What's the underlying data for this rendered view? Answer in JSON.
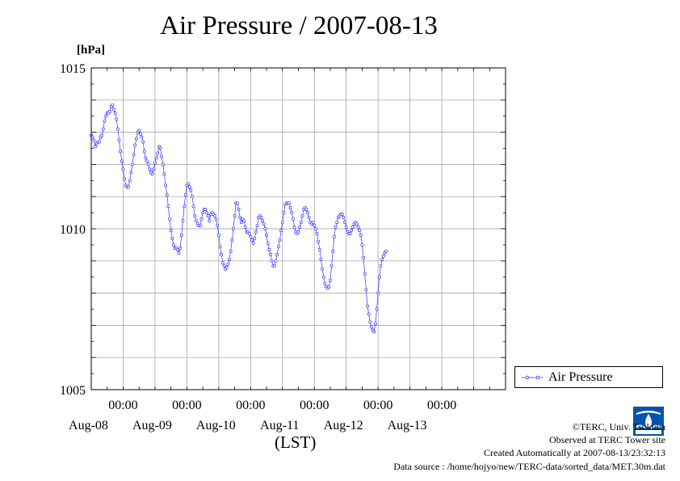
{
  "chart_data": {
    "type": "line",
    "title": "Air Pressure / 2007-08-13",
    "ylabel": "[hPa]",
    "xlabel": "(LST)",
    "ylim": [
      1005,
      1015
    ],
    "y_ticks": [
      "1005",
      "1010",
      "1015"
    ],
    "x_range": [
      "2007-08-07T12:00",
      "2007-08-13T24:00"
    ],
    "x_ticks": [
      {
        "time": "00:00",
        "date": "Aug-08"
      },
      {
        "time": "00:00",
        "date": "Aug-09"
      },
      {
        "time": "00:00",
        "date": "Aug-10"
      },
      {
        "time": "00:00",
        "date": "Aug-11"
      },
      {
        "time": "00:00",
        "date": "Aug-12"
      },
      {
        "time": "00:00",
        "date": "Aug-13"
      }
    ],
    "grid": true,
    "legend_position": "right",
    "series": [
      {
        "name": "Air Pressure",
        "color": "#3333ff",
        "interval_minutes": 30,
        "start": "2007-08-07T12:00",
        "values": [
          1012.9,
          1012.85,
          1012.75,
          1012.55,
          1012.65,
          1012.7,
          1012.7,
          1012.85,
          1012.9,
          1013.1,
          1013.35,
          1013.5,
          1013.6,
          1013.6,
          1013.65,
          1013.8,
          1013.85,
          1013.7,
          1013.6,
          1013.4,
          1013.1,
          1012.75,
          1012.4,
          1012.1,
          1011.85,
          1011.55,
          1011.35,
          1011.3,
          1011.3,
          1011.5,
          1011.75,
          1012.0,
          1012.3,
          1012.6,
          1012.8,
          1013.0,
          1013.05,
          1012.95,
          1012.85,
          1012.7,
          1012.4,
          1012.2,
          1012.1,
          1012.0,
          1011.85,
          1011.75,
          1011.7,
          1011.85,
          1012.05,
          1012.2,
          1012.35,
          1012.55,
          1012.5,
          1012.25,
          1012.0,
          1011.7,
          1011.35,
          1011.05,
          1010.7,
          1010.3,
          1009.95,
          1009.7,
          1009.5,
          1009.4,
          1009.4,
          1009.35,
          1009.25,
          1009.4,
          1009.8,
          1010.25,
          1010.7,
          1011.05,
          1011.35,
          1011.4,
          1011.3,
          1011.2,
          1011.0,
          1010.7,
          1010.4,
          1010.25,
          1010.15,
          1010.1,
          1010.1,
          1010.3,
          1010.5,
          1010.6,
          1010.6,
          1010.5,
          1010.4,
          1010.25,
          1010.45,
          1010.5,
          1010.45,
          1010.4,
          1010.3,
          1010.1,
          1009.8,
          1009.45,
          1009.2,
          1008.95,
          1008.85,
          1008.75,
          1008.8,
          1008.9,
          1009.05,
          1009.3,
          1009.65,
          1010.0,
          1010.4,
          1010.8,
          1010.8,
          1010.6,
          1010.35,
          1010.2,
          1010.3,
          1010.25,
          1010.05,
          1009.9,
          1009.9,
          1009.85,
          1009.75,
          1009.65,
          1009.55,
          1009.7,
          1009.9,
          1010.1,
          1010.35,
          1010.4,
          1010.35,
          1010.25,
          1010.15,
          1010.0,
          1009.8,
          1009.55,
          1009.35,
          1009.2,
          1009.0,
          1008.85,
          1008.85,
          1009.0,
          1009.2,
          1009.45,
          1009.65,
          1009.95,
          1010.2,
          1010.5,
          1010.75,
          1010.8,
          1010.8,
          1010.8,
          1010.65,
          1010.5,
          1010.3,
          1010.05,
          1009.9,
          1009.85,
          1009.9,
          1010.05,
          1010.2,
          1010.4,
          1010.6,
          1010.65,
          1010.6,
          1010.5,
          1010.35,
          1010.2,
          1010.15,
          1010.2,
          1010.1,
          1010.0,
          1009.85,
          1009.6,
          1009.35,
          1009.05,
          1008.75,
          1008.5,
          1008.3,
          1008.2,
          1008.15,
          1008.2,
          1008.4,
          1008.85,
          1009.3,
          1009.75,
          1010.05,
          1010.2,
          1010.35,
          1010.4,
          1010.45,
          1010.45,
          1010.35,
          1010.2,
          1010.05,
          1009.9,
          1009.85,
          1009.85,
          1009.95,
          1010.05,
          1010.15,
          1010.2,
          1010.15,
          1010.05,
          1009.95,
          1009.8,
          1009.5,
          1009.1,
          1008.6,
          1008.1,
          1007.6,
          1007.35,
          1007.1,
          1006.95,
          1006.85,
          1006.8,
          1007.05,
          1007.5,
          1008.0,
          1008.5,
          1008.85,
          1009.05,
          1009.15,
          1009.25,
          1009.3
        ]
      }
    ]
  },
  "legend": {
    "label": "Air Pressure"
  },
  "logo": {
    "name": "terc-logo-icon",
    "color": "#0055aa"
  },
  "credits": {
    "line1": "©TERC, Univ. Tsukuba",
    "line2": "Observed at TERC Tower site",
    "line3": "Created Automatically at 2007-08-13/23:32:13",
    "line4": "Data source : /home/hojyo/new/TERC-data/sorted_data/MET.30m.dat"
  }
}
